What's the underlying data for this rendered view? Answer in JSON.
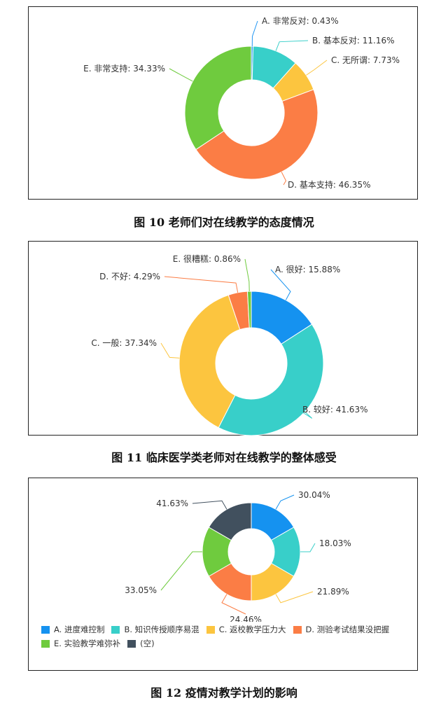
{
  "chart_data": [
    {
      "type": "pie",
      "caption": "图 10 老师们对在线教学的态度情况",
      "categories": [
        "A. 非常反对",
        "B. 基本反对",
        "C. 无所谓",
        "D. 基本支持",
        "E. 非常支持"
      ],
      "values": [
        0.43,
        11.16,
        7.73,
        46.35,
        34.33
      ],
      "labels": [
        "A. 非常反对: 0.43%",
        "B. 基本反对: 11.16%",
        "C. 无所谓: 7.73%",
        "D. 基本支持: 46.35%",
        "E. 非常支持: 34.33%"
      ],
      "colors": [
        "#2196f3",
        "#38cfc9",
        "#fcc53f",
        "#fb7d45",
        "#6fcb3e"
      ]
    },
    {
      "type": "pie",
      "caption": "图 11  临床医学类老师对在线教学的整体感受",
      "categories": [
        "A. 很好",
        "B. 较好",
        "C. 一般",
        "D. 不好",
        "E. 很糟糕"
      ],
      "values": [
        15.88,
        41.63,
        37.34,
        4.29,
        0.86
      ],
      "labels": [
        "A. 很好: 15.88%",
        "B. 较好: 41.63%",
        "C. 一般: 37.34%",
        "D. 不好: 4.29%",
        "E. 很糟糕: 0.86%"
      ],
      "colors": [
        "#1592f0",
        "#38cfc9",
        "#fcc53f",
        "#fb7d45",
        "#6fcb3e"
      ]
    },
    {
      "type": "pie",
      "caption": "图 12  疫情对教学计划的影响",
      "categories": [
        "A. 进度难控制",
        "B. 知识传授顺序易混",
        "C. 返校教学压力大",
        "D. 测验考试结果没把握",
        "E. 实验教学难弥补",
        "(空)"
      ],
      "values": [
        30.04,
        18.03,
        21.89,
        24.46,
        33.05,
        41.63
      ],
      "labels": [
        "30.04%",
        "18.03%",
        "21.89%",
        "24.46%",
        "33.05%",
        "41.63%"
      ],
      "colors": [
        "#1592f0",
        "#38cfc9",
        "#fcc53f",
        "#fb7d45",
        "#6fcb3e",
        "#41505e"
      ],
      "legend": "bottom"
    }
  ]
}
